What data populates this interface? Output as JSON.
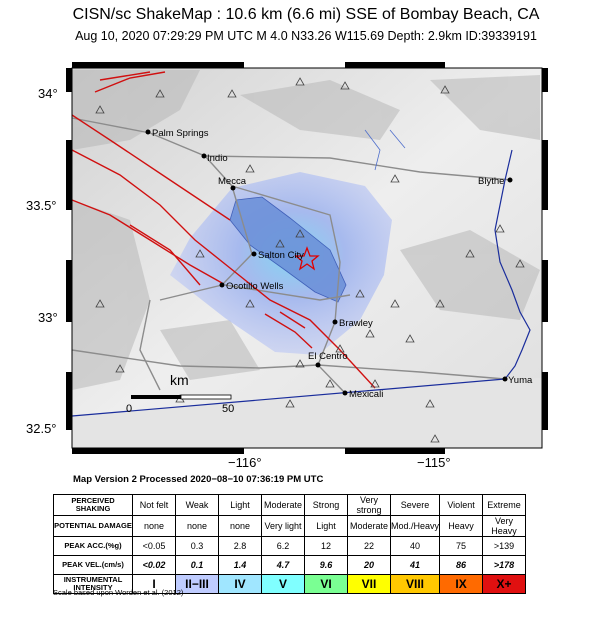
{
  "title": "CISN/sc ShakeMap : 10.6 km (6.6 mi) SSE of Bombay Beach, CA",
  "subtitle": "Aug 10, 2020 07:29:29 PM UTC   M 4.0   N33.26 W115.69   Depth: 2.9km   ID:39339191",
  "lat_labels": [
    "34°",
    "33.5°",
    "33°",
    "32.5°"
  ],
  "lon_labels": [
    "−116°",
    "−115°"
  ],
  "scale_bar": {
    "unit": "km",
    "start": "0",
    "end": "50"
  },
  "cities": [
    "Palm Springs",
    "Indio",
    "Mecca",
    "Blythe",
    "Salton City",
    "Ocotillo Wells",
    "Brawley",
    "El Centro",
    "Yuma",
    "Mexicali"
  ],
  "map_version": "Map Version 2 Processed 2020−08−10 07:36:19 PM UTC",
  "legend": {
    "row_headers": [
      "PERCEIVED SHAKING",
      "POTENTIAL DAMAGE",
      "PEAK ACC.(%g)",
      "PEAK VEL.(cm/s)",
      "INSTRUMENTAL INTENSITY"
    ],
    "shaking": [
      "Not felt",
      "Weak",
      "Light",
      "Moderate",
      "Strong",
      "Very strong",
      "Severe",
      "Violent",
      "Extreme"
    ],
    "damage": [
      "none",
      "none",
      "none",
      "Very light",
      "Light",
      "Moderate",
      "Mod./Heavy",
      "Heavy",
      "Very Heavy"
    ],
    "pga": [
      "<0.05",
      "0.3",
      "2.8",
      "6.2",
      "12",
      "22",
      "40",
      "75",
      ">139"
    ],
    "pgv": [
      "<0.02",
      "0.1",
      "1.4",
      "4.7",
      "9.6",
      "20",
      "41",
      "86",
      ">178"
    ],
    "intensity": [
      "I",
      "II−III",
      "IV",
      "V",
      "VI",
      "VII",
      "VIII",
      "IX",
      "X+"
    ],
    "colors": [
      "#ffffff",
      "#bfccff",
      "#a0e6ff",
      "#80ffff",
      "#7aff93",
      "#ffff00",
      "#ffc800",
      "#ff9100",
      "#ff0000",
      "#c80000"
    ]
  },
  "credit": "Scale based upon Worden et al. (2012)"
}
